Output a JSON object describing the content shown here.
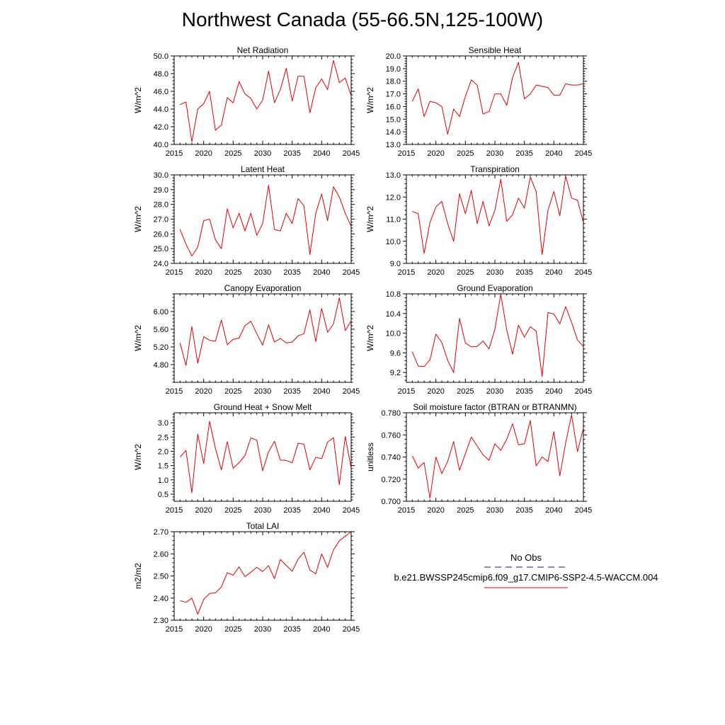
{
  "title": "Northwest Canada (55-66.5N,125-100W)",
  "legend": {
    "entries": [
      {
        "label": "No Obs",
        "color": "#1a1a7a",
        "dash": true
      },
      {
        "label": "b.e21.BWSSP245cmip6.f09_g17.CMIP6-SSP2-4.5-WACCM.004",
        "color": "#e00000",
        "dash": false
      }
    ]
  },
  "chart_data": [
    {
      "type": "line",
      "title": "Net Radiation",
      "ylabel": "W/m^2",
      "xlim": [
        2015,
        2045
      ],
      "ylim": [
        40,
        50
      ],
      "xticks": [
        2015,
        2020,
        2025,
        2030,
        2035,
        2040,
        2045
      ],
      "yticks": [
        "40.0",
        "42.0",
        "44.0",
        "46.0",
        "48.0",
        "50.0"
      ],
      "x": [
        2016,
        2017,
        2018,
        2019,
        2020,
        2021,
        2022,
        2023,
        2024,
        2025,
        2026,
        2027,
        2028,
        2029,
        2030,
        2031,
        2032,
        2033,
        2034,
        2035,
        2036,
        2037,
        2038,
        2039,
        2040,
        2041,
        2042,
        2043,
        2044,
        2045
      ],
      "series": [
        {
          "color": "#e00000",
          "values": [
            44.5,
            44.8,
            40.3,
            44.0,
            44.6,
            46.0,
            41.6,
            42.2,
            45.3,
            44.7,
            47.1,
            45.7,
            45.2,
            44.0,
            45.0,
            48.3,
            44.7,
            46.2,
            48.6,
            44.9,
            47.7,
            47.7,
            43.6,
            46.4,
            47.4,
            46.2,
            49.5,
            47.0,
            47.5,
            45.5
          ]
        }
      ]
    },
    {
      "type": "line",
      "title": "Sensible Heat",
      "ylabel": "W/m^2",
      "xlim": [
        2015,
        2045
      ],
      "ylim": [
        13,
        20
      ],
      "xticks": [
        2015,
        2020,
        2025,
        2030,
        2035,
        2040,
        2045
      ],
      "yticks": [
        "13.0",
        "14.0",
        "15.0",
        "16.0",
        "17.0",
        "18.0",
        "19.0",
        "20.0"
      ],
      "x": [
        2016,
        2017,
        2018,
        2019,
        2020,
        2021,
        2022,
        2023,
        2024,
        2025,
        2026,
        2027,
        2028,
        2029,
        2030,
        2031,
        2032,
        2033,
        2034,
        2035,
        2036,
        2037,
        2038,
        2039,
        2040,
        2041,
        2042,
        2043,
        2044,
        2045
      ],
      "series": [
        {
          "color": "#e00000",
          "values": [
            16.4,
            17.4,
            15.2,
            16.4,
            16.3,
            16.0,
            13.8,
            15.8,
            15.2,
            16.8,
            18.1,
            17.7,
            15.4,
            15.6,
            17.0,
            17.0,
            16.1,
            18.3,
            19.5,
            16.6,
            17.0,
            17.7,
            17.6,
            17.5,
            16.9,
            16.9,
            17.8,
            17.7,
            17.7,
            17.8
          ]
        }
      ]
    },
    {
      "type": "line",
      "title": "Latent Heat",
      "ylabel": "W/m^2",
      "xlim": [
        2015,
        2045
      ],
      "ylim": [
        24,
        30
      ],
      "xticks": [
        2015,
        2020,
        2025,
        2030,
        2035,
        2040,
        2045
      ],
      "yticks": [
        "24.0",
        "25.0",
        "26.0",
        "27.0",
        "28.0",
        "29.0",
        "30.0"
      ],
      "x": [
        2016,
        2017,
        2018,
        2019,
        2020,
        2021,
        2022,
        2023,
        2024,
        2025,
        2026,
        2027,
        2028,
        2029,
        2030,
        2031,
        2032,
        2033,
        2034,
        2035,
        2036,
        2037,
        2038,
        2039,
        2040,
        2041,
        2042,
        2043,
        2044,
        2045
      ],
      "series": [
        {
          "color": "#e00000",
          "values": [
            26.3,
            25.3,
            24.5,
            25.1,
            26.9,
            27.0,
            25.6,
            25.0,
            27.7,
            26.4,
            27.4,
            26.2,
            27.4,
            25.9,
            26.7,
            29.3,
            26.3,
            26.2,
            27.4,
            26.7,
            28.4,
            27.9,
            24.6,
            27.4,
            28.7,
            26.9,
            29.2,
            28.5,
            27.4,
            26.5
          ]
        }
      ]
    },
    {
      "type": "line",
      "title": "Transpiration",
      "ylabel": "W/m^2",
      "xlim": [
        2015,
        2045
      ],
      "ylim": [
        9,
        13
      ],
      "xticks": [
        2015,
        2020,
        2025,
        2030,
        2035,
        2040,
        2045
      ],
      "yticks": [
        "9.0",
        "10.0",
        "11.0",
        "12.0",
        "13.0"
      ],
      "x": [
        2016,
        2017,
        2018,
        2019,
        2020,
        2021,
        2022,
        2023,
        2024,
        2025,
        2026,
        2027,
        2028,
        2029,
        2030,
        2031,
        2032,
        2033,
        2034,
        2035,
        2036,
        2037,
        2038,
        2039,
        2040,
        2041,
        2042,
        2043,
        2044,
        2045
      ],
      "series": [
        {
          "color": "#e00000",
          "values": [
            11.35,
            11.25,
            9.45,
            10.85,
            11.55,
            11.8,
            10.8,
            10.0,
            12.15,
            11.25,
            12.3,
            10.8,
            11.8,
            10.7,
            11.4,
            12.8,
            10.9,
            11.2,
            11.95,
            11.5,
            12.9,
            12.25,
            9.4,
            11.4,
            12.25,
            11.15,
            12.95,
            11.95,
            11.85,
            10.85
          ]
        }
      ]
    },
    {
      "type": "line",
      "title": "Canopy Evaporation",
      "ylabel": "W/m^2",
      "xlim": [
        2015,
        2045
      ],
      "ylim": [
        4.4,
        6.4
      ],
      "xticks": [
        2015,
        2020,
        2025,
        2030,
        2035,
        2040,
        2045
      ],
      "yticks": [
        "4.80",
        "5.20",
        "5.60",
        "6.00"
      ],
      "x": [
        2016,
        2017,
        2018,
        2019,
        2020,
        2021,
        2022,
        2023,
        2024,
        2025,
        2026,
        2027,
        2028,
        2029,
        2030,
        2031,
        2032,
        2033,
        2034,
        2035,
        2036,
        2037,
        2038,
        2039,
        2040,
        2041,
        2042,
        2043,
        2044,
        2045
      ],
      "series": [
        {
          "color": "#e00000",
          "values": [
            5.29,
            4.78,
            5.66,
            4.83,
            5.43,
            5.35,
            5.33,
            5.81,
            5.25,
            5.37,
            5.4,
            5.68,
            5.78,
            5.5,
            5.24,
            5.7,
            5.31,
            5.39,
            5.29,
            5.31,
            5.45,
            5.5,
            6.04,
            5.32,
            6.07,
            5.53,
            5.72,
            6.31,
            5.57,
            5.79
          ]
        }
      ]
    },
    {
      "type": "line",
      "title": "Ground Evaporation",
      "ylabel": "W/m^2",
      "xlim": [
        2015,
        2045
      ],
      "ylim": [
        9.0,
        10.8
      ],
      "xticks": [
        2015,
        2020,
        2025,
        2030,
        2035,
        2040,
        2045
      ],
      "yticks": [
        "9.2",
        "9.6",
        "10.0",
        "10.4",
        "10.8"
      ],
      "x": [
        2016,
        2017,
        2018,
        2019,
        2020,
        2021,
        2022,
        2023,
        2024,
        2025,
        2026,
        2027,
        2028,
        2029,
        2030,
        2031,
        2032,
        2033,
        2034,
        2035,
        2036,
        2037,
        2038,
        2039,
        2040,
        2041,
        2042,
        2043,
        2044,
        2045
      ],
      "series": [
        {
          "color": "#e00000",
          "values": [
            9.62,
            9.33,
            9.32,
            9.46,
            9.98,
            9.81,
            9.45,
            9.2,
            10.3,
            9.8,
            9.72,
            9.73,
            9.84,
            9.68,
            10.08,
            10.79,
            10.07,
            9.57,
            10.16,
            9.92,
            10.13,
            10.04,
            9.12,
            10.42,
            10.39,
            10.19,
            10.54,
            10.22,
            9.86,
            9.73
          ]
        }
      ]
    },
    {
      "type": "line",
      "title": "Ground Heat + Snow Melt",
      "ylabel": "W/m^2",
      "xlim": [
        2015,
        2045
      ],
      "ylim": [
        0.25,
        3.35
      ],
      "xticks": [
        2015,
        2020,
        2025,
        2030,
        2035,
        2040,
        2045
      ],
      "yticks": [
        "0.5",
        "1.0",
        "1.5",
        "2.0",
        "2.5",
        "3.0"
      ],
      "x": [
        2016,
        2017,
        2018,
        2019,
        2020,
        2021,
        2022,
        2023,
        2024,
        2025,
        2026,
        2027,
        2028,
        2029,
        2030,
        2031,
        2032,
        2033,
        2034,
        2035,
        2036,
        2037,
        2038,
        2039,
        2040,
        2041,
        2042,
        2043,
        2044,
        2045
      ],
      "series": [
        {
          "color": "#e00000",
          "values": [
            1.8,
            2.03,
            0.55,
            2.6,
            1.57,
            3.05,
            2.1,
            1.35,
            2.34,
            1.41,
            1.6,
            1.85,
            2.47,
            2.39,
            1.32,
            1.98,
            2.35,
            1.69,
            1.68,
            1.6,
            2.28,
            2.25,
            1.35,
            1.79,
            1.74,
            2.32,
            2.48,
            0.83,
            2.52,
            1.4
          ]
        }
      ]
    },
    {
      "type": "line",
      "title": "Soil moisture factor (BTRAN or BTRANMN)",
      "ylabel": "unitless",
      "xlim": [
        2015,
        2045
      ],
      "ylim": [
        0.7,
        0.78
      ],
      "xticks": [
        2015,
        2020,
        2025,
        2030,
        2035,
        2040,
        2045
      ],
      "yticks": [
        "0.700",
        "0.720",
        "0.740",
        "0.760",
        "0.780"
      ],
      "x": [
        2016,
        2017,
        2018,
        2019,
        2020,
        2021,
        2022,
        2023,
        2024,
        2025,
        2026,
        2027,
        2028,
        2029,
        2030,
        2031,
        2032,
        2033,
        2034,
        2035,
        2036,
        2037,
        2038,
        2039,
        2040,
        2041,
        2042,
        2043,
        2044,
        2045
      ],
      "series": [
        {
          "color": "#e00000",
          "values": [
            0.741,
            0.73,
            0.735,
            0.703,
            0.74,
            0.725,
            0.736,
            0.754,
            0.728,
            0.743,
            0.758,
            0.75,
            0.742,
            0.737,
            0.752,
            0.746,
            0.756,
            0.77,
            0.751,
            0.752,
            0.773,
            0.732,
            0.74,
            0.736,
            0.763,
            0.723,
            0.753,
            0.778,
            0.745,
            0.766
          ]
        }
      ]
    },
    {
      "type": "line",
      "title": "Total LAI",
      "ylabel": "m2/m2",
      "xlim": [
        2015,
        2045
      ],
      "ylim": [
        2.3,
        2.7
      ],
      "xticks": [
        2015,
        2020,
        2025,
        2030,
        2035,
        2040,
        2045
      ],
      "yticks": [
        "2.30",
        "2.40",
        "2.50",
        "2.60",
        "2.70"
      ],
      "x": [
        2016,
        2017,
        2018,
        2019,
        2020,
        2021,
        2022,
        2023,
        2024,
        2025,
        2026,
        2027,
        2028,
        2029,
        2030,
        2031,
        2032,
        2033,
        2034,
        2035,
        2036,
        2037,
        2038,
        2039,
        2040,
        2041,
        2042,
        2043,
        2044,
        2045
      ],
      "series": [
        {
          "color": "#e00000",
          "values": [
            2.389,
            2.381,
            2.4,
            2.327,
            2.394,
            2.421,
            2.424,
            2.45,
            2.515,
            2.503,
            2.541,
            2.497,
            2.517,
            2.539,
            2.52,
            2.547,
            2.488,
            2.575,
            2.548,
            2.521,
            2.576,
            2.607,
            2.527,
            2.51,
            2.6,
            2.539,
            2.618,
            2.659,
            2.68,
            2.7
          ]
        }
      ]
    }
  ]
}
